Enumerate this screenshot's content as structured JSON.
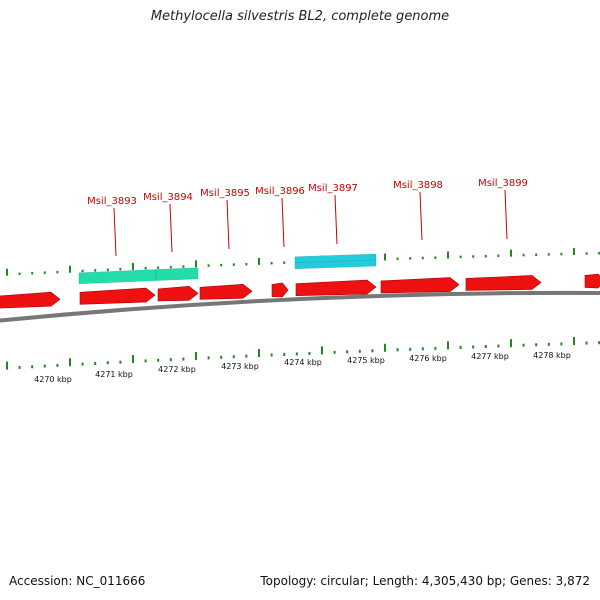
{
  "title": "Methylocella silvestris BL2, complete genome",
  "accession": "Accession: NC_011666",
  "summary": "Topology: circular; Length: 4,305,430 bp; Genes: 3,872",
  "colors": {
    "forward_cds": "#ee1111",
    "forward_cds_edge": "#aa0000",
    "rna_feature_a": "#22ddaa",
    "rna_feature_b": "#22ccdd",
    "backbone": "#777777",
    "ticks": "#228822",
    "label_red": "#cc0000"
  },
  "gene_labels": [
    "Msil_3893",
    "Msil_3894",
    "Msil_3895",
    "Msil_3896",
    "Msil_3897",
    "Msil_3898",
    "Msil_3899"
  ],
  "kbp_labels": [
    "4270 kbp",
    "4271 kbp",
    "4272 kbp",
    "4273 kbp",
    "4274 kbp",
    "4275 kbp",
    "4276 kbp",
    "4277 kbp",
    "4278 kbp"
  ]
}
